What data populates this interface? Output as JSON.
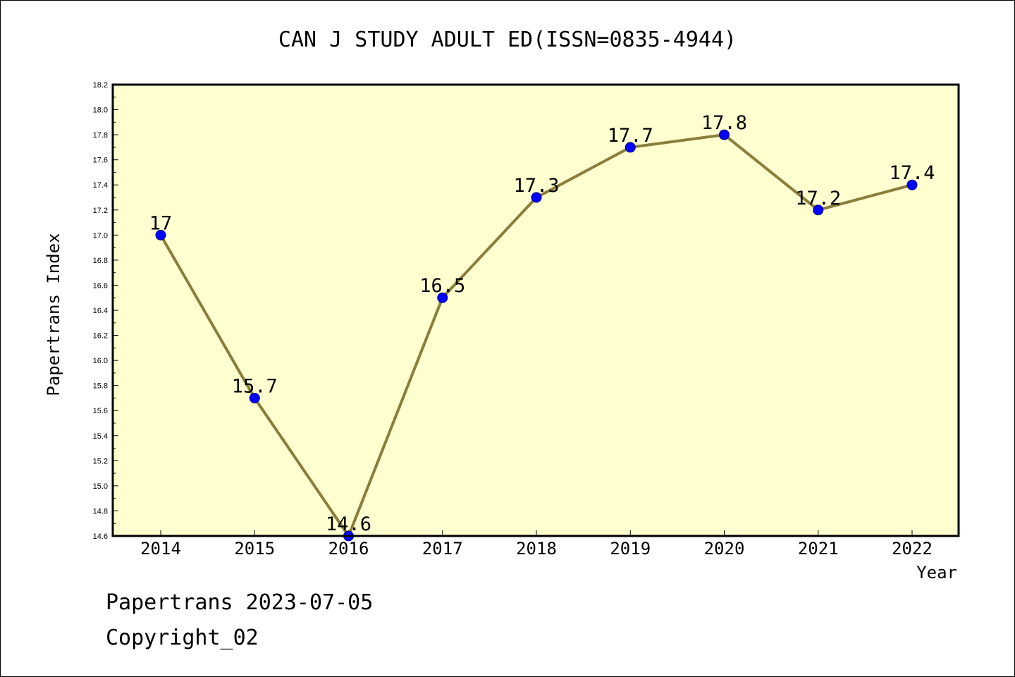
{
  "chart_data": {
    "type": "line",
    "title": "CAN J STUDY ADULT ED(ISSN=0835-4944)",
    "xlabel": "Year",
    "ylabel": "Papertrans Index",
    "categories": [
      "2014",
      "2015",
      "2016",
      "2017",
      "2018",
      "2019",
      "2020",
      "2021",
      "2022"
    ],
    "series": [
      {
        "values": [
          17.0,
          15.7,
          14.6,
          16.5,
          17.3,
          17.7,
          17.8,
          17.2,
          17.4
        ],
        "labels": [
          "17",
          "15.7",
          "14.6",
          "16.5",
          "17.3",
          "17.7",
          "17.8",
          "17.2",
          "17.4"
        ]
      }
    ],
    "ylim": [
      14.6,
      18.2
    ],
    "yticks": [
      "14.6",
      "14.8",
      "15.0",
      "15.2",
      "15.4",
      "15.6",
      "15.8",
      "16.0",
      "16.2",
      "16.4",
      "16.6",
      "16.8",
      "17.0",
      "17.2",
      "17.4",
      "17.6",
      "17.8",
      "18.0",
      "18.2"
    ],
    "grid": false,
    "legend": "none",
    "colors": {
      "plot_background": "#ffffd0",
      "line": "#8b7d3a",
      "marker": "#0000ff",
      "marker_edge": "#000080"
    }
  },
  "footer": {
    "line1": "Papertrans 2023-07-05",
    "line2": "Copyright_02"
  }
}
